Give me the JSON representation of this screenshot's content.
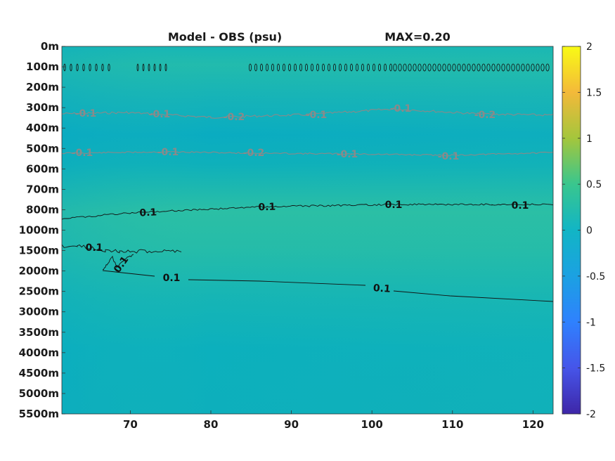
{
  "chart_data": {
    "type": "heatmap",
    "title": "Model - OBS (psu)",
    "max_label": "MAX=0.20",
    "x_ticks": [
      "70",
      "80",
      "90",
      "100",
      "110",
      "120"
    ],
    "x_tick_values": [
      70,
      80,
      90,
      100,
      110,
      120
    ],
    "xlim": [
      61.5,
      122.5
    ],
    "y_ticks": [
      "0m",
      "100m",
      "200m",
      "300m",
      "400m",
      "500m",
      "600m",
      "700m",
      "800m",
      "1000m",
      "1500m",
      "2000m",
      "2500m",
      "3000m",
      "3500m",
      "4000m",
      "4500m",
      "5000m",
      "5500m"
    ],
    "colorbar": {
      "ticks": [
        "2",
        "1.5",
        "1",
        "0.5",
        "0",
        "-0.5",
        "-1",
        "-1.5",
        "-2"
      ],
      "tick_values": [
        2,
        1.5,
        1,
        0.5,
        0,
        -0.5,
        -1,
        -1.5,
        -2
      ],
      "clim": [
        -2,
        2
      ],
      "colormap": "parula"
    },
    "contours": [
      {
        "level": "-0.1",
        "style": "gray",
        "depth": "300m-400m",
        "labels": [
          "-0.1",
          "-0.1",
          "-0.2",
          "-0.1",
          "-0.1",
          "-0.2"
        ]
      },
      {
        "level": "-0.1",
        "style": "gray",
        "depth": "500m",
        "labels": [
          "-0.1",
          "-0.1",
          "-0.2",
          "-0.1",
          "-0.1"
        ]
      },
      {
        "level": "0.1",
        "style": "dark",
        "depth": "800m",
        "labels": [
          "0.1",
          "0.1",
          "0.1",
          "0.1"
        ]
      },
      {
        "level": "0.1",
        "style": "dark",
        "depth": "1500m-2500m",
        "labels": [
          "0.1",
          "0.1",
          "0.1",
          "0.1"
        ]
      }
    ],
    "colors": {
      "field_base": "#16b4b4",
      "field_light": "#2bbfa5",
      "field_dark": "#06acc0",
      "contour_dark": "#111111",
      "contour_gray": "#8a8a8a"
    }
  }
}
